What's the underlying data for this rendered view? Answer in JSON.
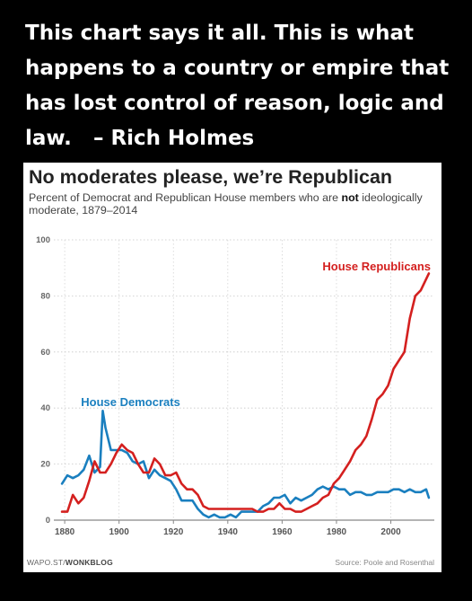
{
  "quote": {
    "line1": "This chart says it all. This is what",
    "line2": "happens to a country or empire that",
    "line3": "has lost control of reason, logic and",
    "line4": "law.   – Rich Holmes"
  },
  "chart_data": {
    "type": "line",
    "title": "No moderates please, we’re Republican",
    "subtitle_prefix": "Percent of Democrat and Republican House members who are ",
    "subtitle_bold": "not",
    "subtitle_suffix": " ideologically moderate, 1879–2014",
    "xlim": [
      1876,
      2016
    ],
    "ylim": [
      0,
      100
    ],
    "x_ticks": [
      1880,
      1900,
      1920,
      1940,
      1960,
      1980,
      2000
    ],
    "y_ticks": [
      0,
      20,
      40,
      60,
      80,
      100
    ],
    "grid": true,
    "series": [
      {
        "name": "House Democrats",
        "color": "#1a7fbf",
        "x": [
          1879,
          1881,
          1883,
          1885,
          1887,
          1889,
          1891,
          1893,
          1894,
          1895,
          1897,
          1899,
          1901,
          1903,
          1905,
          1907,
          1909,
          1911,
          1913,
          1915,
          1917,
          1919,
          1921,
          1923,
          1925,
          1927,
          1929,
          1931,
          1933,
          1935,
          1937,
          1939,
          1941,
          1943,
          1945,
          1947,
          1949,
          1951,
          1953,
          1955,
          1957,
          1959,
          1961,
          1963,
          1965,
          1967,
          1969,
          1971,
          1973,
          1975,
          1977,
          1979,
          1981,
          1983,
          1985,
          1987,
          1989,
          1991,
          1993,
          1995,
          1997,
          1999,
          2001,
          2003,
          2005,
          2007,
          2009,
          2011,
          2013,
          2014
        ],
        "y": [
          13,
          16,
          15,
          16,
          18,
          23,
          17,
          19,
          39,
          33,
          25,
          25,
          25,
          24,
          21,
          20,
          21,
          15,
          18,
          16,
          15,
          14,
          11,
          7,
          7,
          7,
          4,
          2,
          1,
          2,
          1,
          1,
          2,
          1,
          3,
          3,
          3,
          3,
          5,
          6,
          8,
          8,
          9,
          6,
          8,
          7,
          8,
          9,
          11,
          12,
          11,
          12,
          11,
          11,
          9,
          10,
          10,
          9,
          9,
          10,
          10,
          10,
          11,
          11,
          10,
          11,
          10,
          10,
          11,
          8
        ]
      },
      {
        "name": "House Republicans",
        "color": "#d4201f",
        "x": [
          1879,
          1881,
          1883,
          1885,
          1887,
          1889,
          1891,
          1893,
          1895,
          1897,
          1899,
          1901,
          1903,
          1905,
          1907,
          1909,
          1911,
          1913,
          1915,
          1917,
          1919,
          1921,
          1923,
          1925,
          1927,
          1929,
          1931,
          1933,
          1935,
          1937,
          1939,
          1941,
          1943,
          1945,
          1947,
          1949,
          1951,
          1953,
          1955,
          1957,
          1959,
          1961,
          1963,
          1965,
          1967,
          1969,
          1971,
          1973,
          1975,
          1977,
          1979,
          1981,
          1983,
          1985,
          1987,
          1989,
          1991,
          1993,
          1995,
          1997,
          1999,
          2001,
          2003,
          2005,
          2007,
          2009,
          2011,
          2013,
          2014
        ],
        "y": [
          3,
          3,
          9,
          6,
          8,
          14,
          21,
          17,
          17,
          20,
          24,
          27,
          25,
          24,
          20,
          17,
          17,
          22,
          20,
          16,
          16,
          17,
          13,
          11,
          11,
          9,
          5,
          4,
          4,
          4,
          4,
          4,
          4,
          4,
          4,
          4,
          3,
          3,
          4,
          4,
          6,
          4,
          4,
          3,
          3,
          4,
          5,
          6,
          8,
          9,
          13,
          15,
          18,
          21,
          25,
          27,
          30,
          36,
          43,
          45,
          48,
          54,
          57,
          60,
          72,
          80,
          82,
          86,
          88
        ]
      }
    ],
    "annotations": [
      {
        "text": "House Republicans",
        "color": "#d4201f"
      },
      {
        "text": "House Democrats",
        "color": "#1a7fbf"
      }
    ],
    "source_left_prefix": "WAPO.ST/",
    "source_left_bold": "WONKBLOG",
    "source_right": "Source: Poole and Rosenthal"
  }
}
